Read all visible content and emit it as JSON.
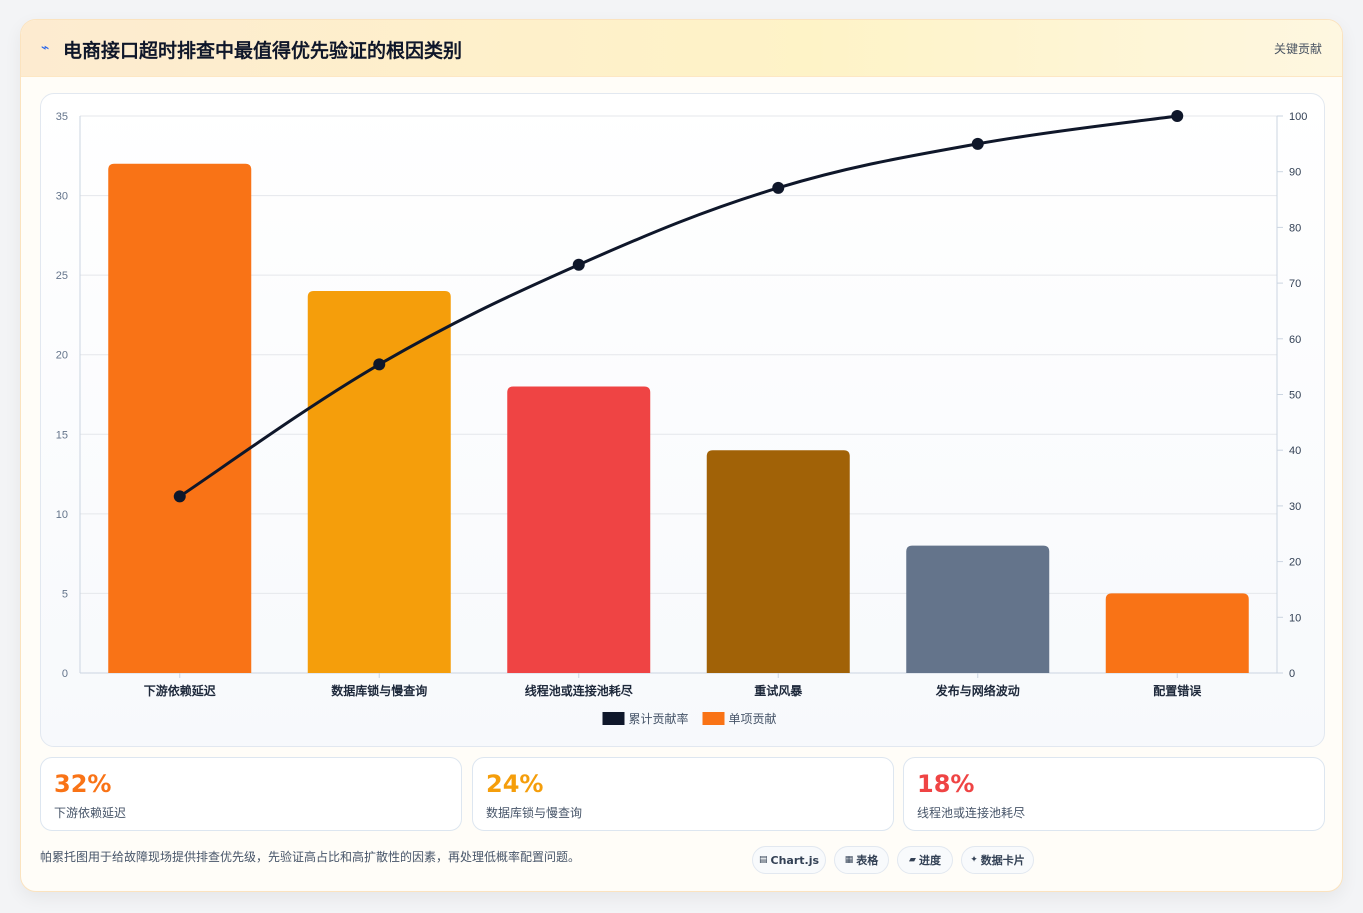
{
  "header": {
    "icon": "bolt-icon",
    "title": "电商接口超时排查中最值得优先验证的根因类别",
    "tag": "关键贡献"
  },
  "chart_data": {
    "type": "bar",
    "categories": [
      "下游依赖延迟",
      "数据库锁与慢查询",
      "线程池或连接池耗尽",
      "重试风暴",
      "发布与网络波动",
      "配置错误"
    ],
    "series": [
      {
        "name": "单项贡献",
        "type": "bar",
        "axis": "left",
        "values": [
          32,
          24,
          18,
          14,
          8,
          5
        ],
        "colors": [
          "#f97316",
          "#f59e0b",
          "#ef4444",
          "#a16207",
          "#64748b",
          "#f97316"
        ]
      },
      {
        "name": "累计贡献率",
        "type": "line",
        "axis": "right",
        "values": [
          31.7,
          55.4,
          73.3,
          87.1,
          95.0,
          100.0
        ],
        "color": "#0f172a"
      }
    ],
    "ylim": [
      0,
      35
    ],
    "y_ticks": [
      0,
      5,
      10,
      15,
      20,
      25,
      30,
      35
    ],
    "y2lim": [
      0,
      100
    ],
    "y2_ticks": [
      0,
      10,
      20,
      30,
      40,
      50,
      60,
      70,
      80,
      90,
      100
    ],
    "legend": [
      {
        "label": "累计贡献率",
        "color": "#0f172a"
      },
      {
        "label": "单项贡献",
        "color": "#f97316"
      }
    ],
    "legend_position": "bottom",
    "grid": true
  },
  "stats": [
    {
      "value": "32%",
      "label": "下游依赖延迟",
      "color": "#f97316"
    },
    {
      "value": "24%",
      "label": "数据库锁与慢查询",
      "color": "#f59e0b"
    },
    {
      "value": "18%",
      "label": "线程池或连接池耗尽",
      "color": "#ef4444"
    }
  ],
  "footer": {
    "note": "帕累托图用于给故障现场提供排查优先级，先验证高占比和高扩散性的因素，再处理低概率配置问题。",
    "pills": [
      {
        "icon": "chart-icon",
        "glyph": "▤",
        "label": "Chart.js"
      },
      {
        "icon": "table-icon",
        "glyph": "▦",
        "label": "表格"
      },
      {
        "icon": "progress-icon",
        "glyph": "▰",
        "label": "进度"
      },
      {
        "icon": "card-icon",
        "glyph": "✦",
        "label": "数据卡片"
      }
    ]
  }
}
